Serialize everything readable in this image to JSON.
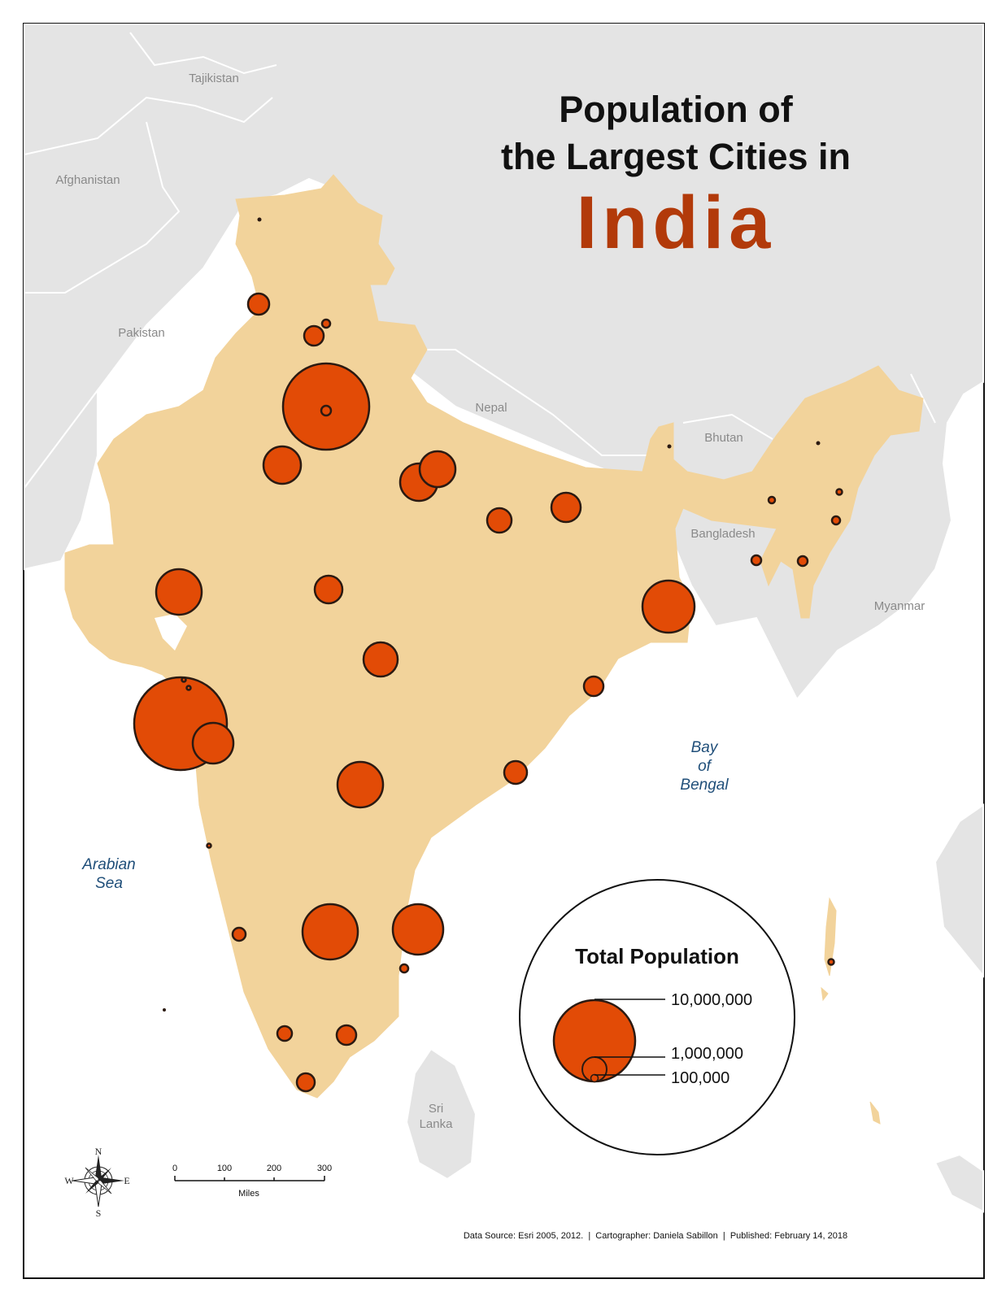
{
  "title": {
    "line1": "Population of",
    "line2": "the Largest Cities in",
    "country": "India"
  },
  "country_labels": {
    "tajikistan": "Tajikistan",
    "afghanistan": "Afghanistan",
    "pakistan": "Pakistan",
    "nepal": "Nepal",
    "bhutan": "Bhutan",
    "bangladesh": "Bangladesh",
    "myanmar": "Myanmar",
    "sri_lanka_line1": "Sri",
    "sri_lanka_line2": "Lanka"
  },
  "water_labels": {
    "bay_line1": "Bay",
    "bay_line2": "of",
    "bay_line3": "Bengal",
    "arabian_line1": "Arabian",
    "arabian_line2": "Sea"
  },
  "legend": {
    "title": "Total Population",
    "values": [
      "10,000,000",
      "1,000,000",
      "100,000"
    ]
  },
  "scale_bar": {
    "ticks": [
      "0",
      "100",
      "200",
      "300"
    ],
    "unit": "Miles"
  },
  "compass": {
    "n": "N",
    "s": "S",
    "e": "E",
    "w": "W"
  },
  "credits": "Data Source: Esri 2005, 2012.  |  Cartographer: Daniela Sabillon  |  Published: February 14, 2018",
  "colors": {
    "background_land": "#e4e4e4",
    "india_fill": "#f2d39b",
    "city_fill": "#e24b06",
    "title_accent": "#b23a0a",
    "water": "#ffffff",
    "water_label": "#1f4e79"
  }
}
